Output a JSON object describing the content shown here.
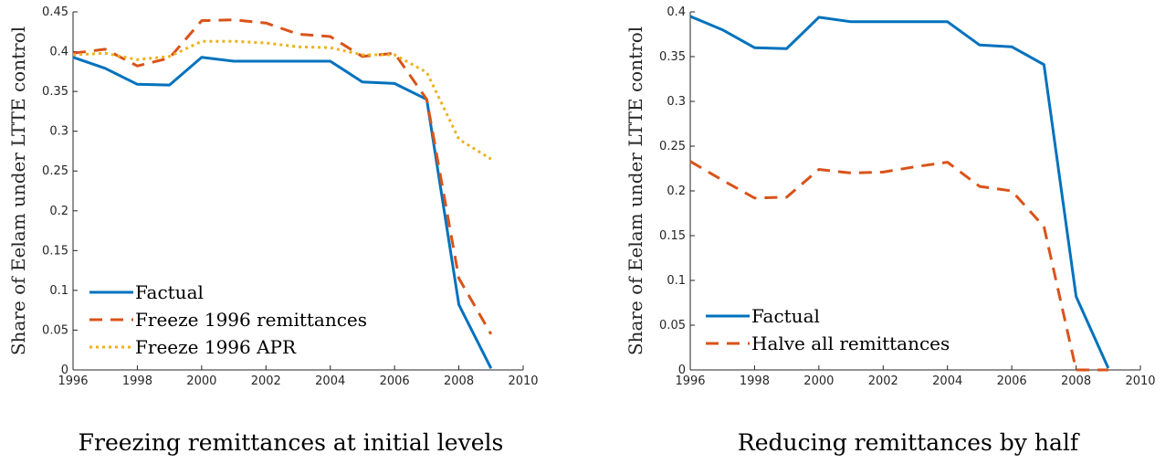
{
  "chart_data": [
    {
      "type": "line",
      "caption": "Freezing remittances at initial levels",
      "ylabel": "Share of Eelam under LTTE control",
      "xlabel": "",
      "xlim": [
        1996,
        2010
      ],
      "ylim": [
        0,
        0.45
      ],
      "xticks": [
        1996,
        1998,
        2000,
        2002,
        2004,
        2006,
        2008,
        2010
      ],
      "yticks": [
        0,
        0.05,
        0.1,
        0.15,
        0.2,
        0.25,
        0.3,
        0.35,
        0.4,
        0.45
      ],
      "ytick_labels": [
        "0",
        "0.05",
        "0.1",
        "0.15",
        "0.2",
        "0.25",
        "0.3",
        "0.35",
        "0.4",
        "0.45"
      ],
      "legend_position": "bottom-left",
      "x": [
        1996,
        1997,
        1998,
        1999,
        2000,
        2001,
        2002,
        2003,
        2004,
        2005,
        2006,
        2007,
        2008,
        2009
      ],
      "series": [
        {
          "name": "Factual",
          "color": "#0072BD",
          "style": "solid",
          "values": [
            0.393,
            0.379,
            0.359,
            0.358,
            0.393,
            0.388,
            0.388,
            0.388,
            0.388,
            0.362,
            0.36,
            0.34,
            0.082,
            0.002
          ]
        },
        {
          "name": "Freeze 1996 remittances",
          "color": "#D95319",
          "style": "dashed",
          "values": [
            0.398,
            0.403,
            0.382,
            0.392,
            0.439,
            0.44,
            0.436,
            0.422,
            0.419,
            0.394,
            0.398,
            0.34,
            0.115,
            0.045
          ]
        },
        {
          "name": "Freeze 1996 APR",
          "color": "#EDB120",
          "style": "dotted",
          "values": [
            0.396,
            0.398,
            0.39,
            0.394,
            0.413,
            0.413,
            0.411,
            0.406,
            0.405,
            0.396,
            0.396,
            0.374,
            0.29,
            0.265
          ]
        }
      ]
    },
    {
      "type": "line",
      "caption": "Reducing remittances by half",
      "ylabel": "Share of Eelam under LTTE control",
      "xlabel": "",
      "xlim": [
        1996,
        2010
      ],
      "ylim": [
        0,
        0.4
      ],
      "xticks": [
        1996,
        1998,
        2000,
        2002,
        2004,
        2006,
        2008,
        2010
      ],
      "yticks": [
        0,
        0.05,
        0.1,
        0.15,
        0.2,
        0.25,
        0.3,
        0.35,
        0.4
      ],
      "ytick_labels": [
        "0",
        "0.05",
        "0.1",
        "0.15",
        "0.2",
        "0.25",
        "0.3",
        "0.35",
        "0.4"
      ],
      "legend_position": "bottom-left",
      "x": [
        1996,
        1997,
        1998,
        1999,
        2000,
        2001,
        2002,
        2003,
        2004,
        2005,
        2006,
        2007,
        2008,
        2009
      ],
      "series": [
        {
          "name": "Factual",
          "color": "#0072BD",
          "style": "solid",
          "values": [
            0.395,
            0.38,
            0.36,
            0.359,
            0.394,
            0.389,
            0.389,
            0.389,
            0.389,
            0.363,
            0.361,
            0.341,
            0.082,
            0.002
          ]
        },
        {
          "name": "Halve all remittances",
          "color": "#D95319",
          "style": "dashed",
          "values": [
            0.233,
            0.212,
            0.192,
            0.193,
            0.224,
            0.22,
            0.221,
            0.227,
            0.232,
            0.205,
            0.2,
            0.16,
            0.0,
            0.0
          ]
        }
      ]
    }
  ]
}
